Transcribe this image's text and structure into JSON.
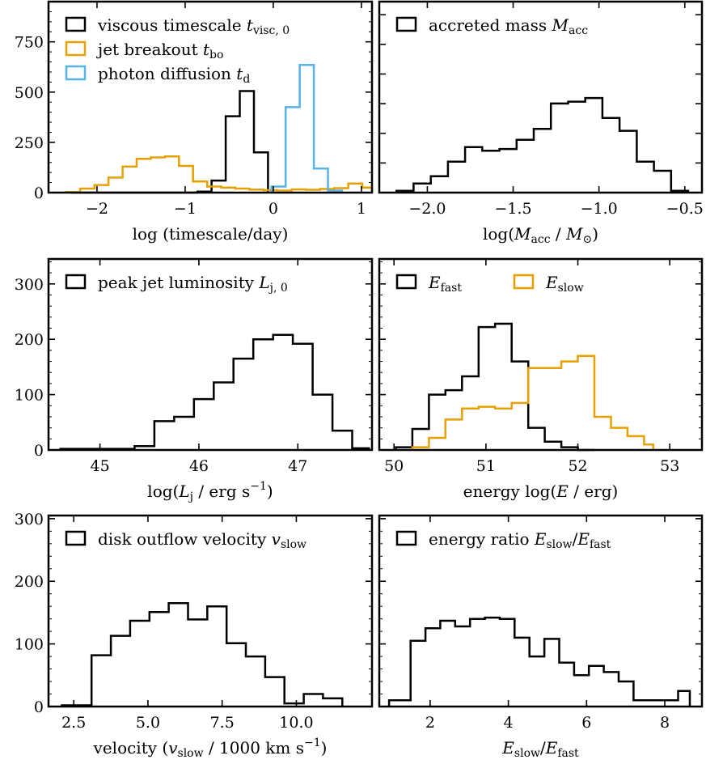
{
  "chart_data": [
    {
      "id": "timescales",
      "type": "histogram",
      "xlim": [
        -2.55,
        1.12
      ],
      "ylim": [
        0,
        950
      ],
      "xticks": [
        -2,
        -1,
        0,
        1
      ],
      "xtick_labels": [
        "−2",
        "−1",
        "0",
        "1"
      ],
      "yticks": [
        0,
        250,
        500,
        750
      ],
      "ytick_labels": [
        "0",
        "250",
        "500",
        "750"
      ],
      "yminor": 50,
      "show_ytick_labels": true,
      "xlabel": [
        {
          "t": "log (timescale/day)"
        }
      ],
      "legend": {
        "position": "top-left",
        "ncol": 1
      },
      "series": [
        {
          "label": [
            {
              "t": "viscous timescale "
            },
            {
              "t": "t",
              "i": true
            },
            {
              "t": "visc, 0",
              "s": true
            }
          ],
          "color": "#000000",
          "edges": [
            -2.3,
            -2.14,
            -1.98,
            -1.82,
            -1.66,
            -1.5,
            -1.34,
            -1.18,
            -1.02,
            -0.86,
            -0.7,
            -0.54,
            -0.38,
            -0.22,
            -0.06
          ],
          "values": [
            0,
            0,
            0,
            0,
            0,
            0,
            0,
            0,
            0,
            5,
            60,
            380,
            505,
            200
          ]
        },
        {
          "label": [
            {
              "t": "jet breakout "
            },
            {
              "t": "t",
              "i": true
            },
            {
              "t": "bo",
              "s": true
            }
          ],
          "color": "#E6A000",
          "edges": [
            -2.35,
            -2.19,
            -2.03,
            -1.87,
            -1.71,
            -1.55,
            -1.39,
            -1.23,
            -1.07,
            -0.91,
            -0.75,
            -0.59,
            -0.43,
            -0.27,
            -0.11,
            0.05,
            0.21,
            0.37,
            0.53,
            0.69,
            0.85,
            1.01,
            1.12
          ],
          "values": [
            3,
            20,
            38,
            75,
            130,
            168,
            175,
            180,
            133,
            55,
            30,
            25,
            20,
            15,
            12,
            10,
            16,
            14,
            18,
            22,
            45,
            25
          ]
        },
        {
          "label": [
            {
              "t": "photon diffusion "
            },
            {
              "t": "t",
              "i": true
            },
            {
              "t": "d",
              "s": true
            }
          ],
          "color": "#56B4E9",
          "edges": [
            -0.02,
            0.14,
            0.3,
            0.46,
            0.62,
            0.78
          ],
          "values": [
            30,
            425,
            635,
            120,
            10
          ]
        }
      ]
    },
    {
      "id": "accreted-mass",
      "type": "histogram",
      "xlim": [
        -2.28,
        -0.4
      ],
      "ylim": [
        0,
        1.05
      ],
      "xticks": [
        -2.0,
        -1.5,
        -1.0,
        -0.5
      ],
      "xtick_labels": [
        "−2.0",
        "−1.5",
        "−1.0",
        "−0.5"
      ],
      "yticks": [
        0,
        0.163,
        0.326,
        0.489,
        0.652,
        0.815,
        0.978
      ],
      "ytick_labels": [],
      "show_ytick_labels": false,
      "xlabel": [
        {
          "t": "log("
        },
        {
          "t": "M",
          "i": true
        },
        {
          "t": "acc",
          "s": true
        },
        {
          "t": " / "
        },
        {
          "t": "M",
          "i": true
        },
        {
          "t": "⊙",
          "s": true
        },
        {
          "t": ")"
        }
      ],
      "legend": {
        "position": "top-left",
        "ncol": 1
      },
      "series": [
        {
          "label": [
            {
              "t": "accreted mass "
            },
            {
              "t": "M",
              "i": true
            },
            {
              "t": "acc",
              "s": true
            }
          ],
          "color": "#000000",
          "edges": [
            -2.18,
            -2.08,
            -1.98,
            -1.88,
            -1.78,
            -1.68,
            -1.58,
            -1.48,
            -1.38,
            -1.28,
            -1.18,
            -1.08,
            -0.98,
            -0.88,
            -0.78,
            -0.68,
            -0.58,
            -0.48
          ],
          "values": [
            0.01,
            0.05,
            0.09,
            0.17,
            0.25,
            0.23,
            0.24,
            0.29,
            0.35,
            0.49,
            0.5,
            0.52,
            0.41,
            0.34,
            0.17,
            0.12,
            0.01
          ]
        }
      ]
    },
    {
      "id": "jet-luminosity",
      "type": "histogram",
      "xlim": [
        44.48,
        47.75
      ],
      "ylim": [
        0,
        345
      ],
      "xticks": [
        45,
        46,
        47
      ],
      "xtick_labels": [
        "45",
        "46",
        "47"
      ],
      "yticks": [
        0,
        100,
        200,
        300
      ],
      "ytick_labels": [
        "0",
        "100",
        "200",
        "300"
      ],
      "yminor": 20,
      "show_ytick_labels": true,
      "xlabel": [
        {
          "t": "log("
        },
        {
          "t": "L",
          "i": true
        },
        {
          "t": "j",
          "s": true
        },
        {
          "t": " / erg s"
        },
        {
          "t": "−1",
          "u": true
        },
        {
          "t": ")"
        }
      ],
      "legend": {
        "position": "top-left",
        "ncol": 1
      },
      "series": [
        {
          "label": [
            {
              "t": "peak jet luminosity "
            },
            {
              "t": "L",
              "i": true
            },
            {
              "t": "j, 0",
              "s": true
            }
          ],
          "color": "#000000",
          "edges": [
            44.6,
            45.35,
            45.55,
            45.75,
            45.95,
            46.15,
            46.35,
            46.55,
            46.75,
            46.95,
            47.15,
            47.35,
            47.55,
            47.72
          ],
          "values": [
            2,
            7,
            52,
            60,
            92,
            122,
            165,
            200,
            208,
            192,
            100,
            35,
            3
          ]
        }
      ]
    },
    {
      "id": "energies",
      "type": "histogram",
      "xlim": [
        49.84,
        53.35
      ],
      "ylim": [
        0,
        345
      ],
      "xticks": [
        50,
        51,
        52,
        53
      ],
      "xtick_labels": [
        "50",
        "51",
        "52",
        "53"
      ],
      "yticks": [
        0,
        100,
        200,
        300
      ],
      "ytick_labels": [],
      "yminor": 20,
      "show_ytick_labels": false,
      "xlabel": [
        {
          "t": "energy log("
        },
        {
          "t": "E",
          "i": true
        },
        {
          "t": " / erg)"
        }
      ],
      "legend": {
        "position": "top-left",
        "ncol": 2
      },
      "series": [
        {
          "label": [
            {
              "t": "E",
              "i": true
            },
            {
              "t": "fast",
              "s": true
            }
          ],
          "color": "#000000",
          "edges": [
            50.02,
            50.2,
            50.38,
            50.56,
            50.74,
            50.92,
            51.1,
            51.28,
            51.46,
            51.64,
            51.82,
            52.0,
            52.18
          ],
          "values": [
            5,
            38,
            100,
            108,
            133,
            222,
            228,
            160,
            40,
            15,
            5,
            0
          ]
        },
        {
          "label": [
            {
              "t": "E",
              "i": true
            },
            {
              "t": "slow",
              "s": true
            }
          ],
          "color": "#E6A000",
          "edges": [
            50.2,
            50.38,
            50.56,
            50.74,
            50.92,
            51.1,
            51.28,
            51.46,
            51.64,
            51.82,
            52.0,
            52.18,
            52.36,
            52.54,
            52.72,
            52.82
          ],
          "values": [
            5,
            22,
            55,
            75,
            78,
            75,
            85,
            148,
            148,
            160,
            170,
            60,
            40,
            25,
            10
          ]
        }
      ]
    },
    {
      "id": "outflow-velocity",
      "type": "histogram",
      "xlim": [
        1.65,
        12.55
      ],
      "ylim": [
        0,
        305
      ],
      "xticks": [
        2.5,
        5.0,
        7.5,
        10.0
      ],
      "xtick_labels": [
        "2.5",
        "5.0",
        "7.5",
        "10.0"
      ],
      "yticks": [
        0,
        100,
        200,
        300
      ],
      "ytick_labels": [
        "0",
        "100",
        "200",
        "300"
      ],
      "yminor": 20,
      "show_ytick_labels": true,
      "xlabel": [
        {
          "t": "velocity ("
        },
        {
          "t": "v",
          "i": true
        },
        {
          "t": "slow",
          "s": true
        },
        {
          "t": " / 1000 km s"
        },
        {
          "t": "−1",
          "u": true
        },
        {
          "t": ")"
        }
      ],
      "legend": {
        "position": "top-left",
        "ncol": 1
      },
      "series": [
        {
          "label": [
            {
              "t": "disk outflow velocity "
            },
            {
              "t": "v",
              "i": true
            },
            {
              "t": "slow",
              "s": true
            }
          ],
          "color": "#000000",
          "edges": [
            2.1,
            3.1,
            3.75,
            4.4,
            5.05,
            5.7,
            6.35,
            7.0,
            7.65,
            8.3,
            8.95,
            9.6,
            10.25,
            10.9,
            11.55
          ],
          "values": [
            2,
            82,
            113,
            137,
            151,
            165,
            139,
            160,
            101,
            80,
            47,
            5,
            20,
            13
          ]
        }
      ]
    },
    {
      "id": "energy-ratio",
      "type": "histogram",
      "xlim": [
        0.7,
        8.95
      ],
      "ylim": [
        0,
        305
      ],
      "xticks": [
        2,
        4,
        6,
        8
      ],
      "xtick_labels": [
        "2",
        "4",
        "6",
        "8"
      ],
      "yticks": [
        0,
        100,
        200,
        300
      ],
      "ytick_labels": [],
      "yminor": 20,
      "show_ytick_labels": false,
      "xlabel": [
        {
          "t": "E",
          "i": true
        },
        {
          "t": "slow",
          "s": true
        },
        {
          "t": "/"
        },
        {
          "t": "E",
          "i": true
        },
        {
          "t": "fast",
          "s": true
        }
      ],
      "legend": {
        "position": "top-left",
        "ncol": 1
      },
      "series": [
        {
          "label": [
            {
              "t": "energy ratio "
            },
            {
              "t": "E",
              "i": true
            },
            {
              "t": "slow",
              "s": true
            },
            {
              "t": "/"
            },
            {
              "t": "E",
              "i": true
            },
            {
              "t": "fast",
              "s": true
            }
          ],
          "color": "#000000",
          "edges": [
            0.95,
            1.5,
            1.88,
            2.26,
            2.64,
            3.02,
            3.4,
            3.78,
            4.16,
            4.54,
            4.92,
            5.3,
            5.68,
            6.06,
            6.44,
            6.82,
            7.2,
            7.58,
            7.96,
            8.34,
            8.64
          ],
          "values": [
            10,
            105,
            125,
            137,
            128,
            140,
            142,
            140,
            110,
            80,
            108,
            70,
            50,
            65,
            55,
            40,
            10,
            10,
            10,
            25
          ]
        }
      ]
    }
  ]
}
